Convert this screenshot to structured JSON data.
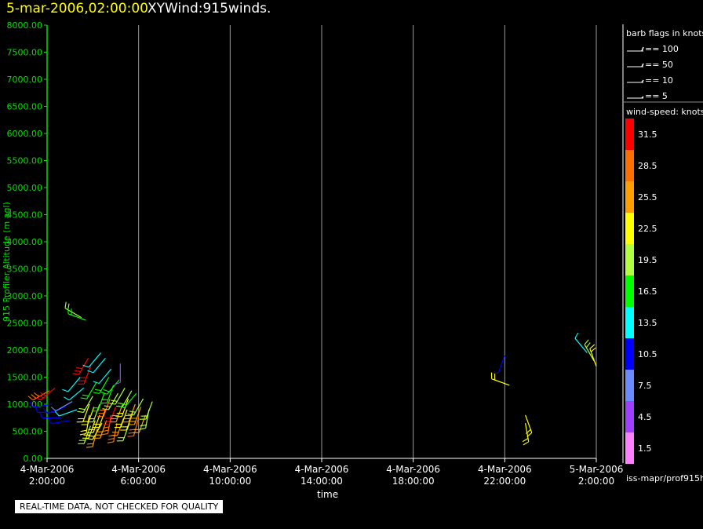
{
  "header": {
    "date_time": "5-mar-2006,02:00:00",
    "plot_name": "XYWind:915winds."
  },
  "quality_note": "REAL-TIME DATA, NOT CHECKED FOR QUALITY",
  "legend": {
    "barb_title": "barb flags in knots",
    "barbs": [
      {
        "label": "== 100"
      },
      {
        "label": "== 50"
      },
      {
        "label": "== 10"
      },
      {
        "label": "== 5"
      }
    ],
    "speed_title": "wind-speed: knots",
    "source_label": "iss-mapr/prof915h",
    "colorbar": [
      {
        "label": "31.5",
        "color": "#ff0000"
      },
      {
        "label": "28.5",
        "color": "#ff7000"
      },
      {
        "label": "25.5",
        "color": "#ffa000"
      },
      {
        "label": "22.5",
        "color": "#ffff00"
      },
      {
        "label": "19.5",
        "color": "#b0ff40"
      },
      {
        "label": "16.5",
        "color": "#00ff00"
      },
      {
        "label": "13.5",
        "color": "#00ffff"
      },
      {
        "label": "10.5",
        "color": "#0000ff"
      },
      {
        "label": "7.5",
        "color": "#6a8cff"
      },
      {
        "label": "4.5",
        "color": "#a040ff"
      },
      {
        "label": "1.5",
        "color": "#ff80ff"
      }
    ]
  },
  "chart_data": {
    "type": "scatter",
    "title": "5-mar-2006,02:00:00  XYWind:915winds.",
    "xlabel": "time",
    "ylabel": "915 Profiler Altitude (m agl)",
    "xlim": [
      "4-Mar-2006 02:00:00",
      "5-Mar-2006 02:00:00"
    ],
    "ylim": [
      0,
      8000
    ],
    "yticks": [
      "0.00",
      "500.00",
      "1000.00",
      "1500.00",
      "2000.00",
      "2500.00",
      "3000.00",
      "3500.00",
      "4000.00",
      "4500.00",
      "5000.00",
      "5500.00",
      "6000.00",
      "6500.00",
      "7000.00",
      "7500.00",
      "8000.00"
    ],
    "xticks": [
      {
        "date": "4-Mar-2006",
        "time": "2:00:00",
        "hour": 0
      },
      {
        "date": "4-Mar-2006",
        "time": "6:00:00",
        "hour": 4
      },
      {
        "date": "4-Mar-2006",
        "time": "10:00:00",
        "hour": 8
      },
      {
        "date": "4-Mar-2006",
        "time": "14:00:00",
        "hour": 12
      },
      {
        "date": "4-Mar-2006",
        "time": "18:00:00",
        "hour": 16
      },
      {
        "date": "4-Mar-2006",
        "time": "22:00:00",
        "hour": 20
      },
      {
        "date": "5-Mar-2006",
        "time": "2:00:00",
        "hour": 24
      }
    ],
    "grid": true,
    "series": [
      {
        "values": [
          {
            "hour": 0.1,
            "alt": 1250,
            "speed": 28,
            "dir": 240
          },
          {
            "hour": 0.35,
            "alt": 1300,
            "speed": 30,
            "dir": 230
          },
          {
            "hour": 0.2,
            "alt": 1000,
            "speed": 9,
            "dir": 260
          },
          {
            "hour": 0.4,
            "alt": 850,
            "speed": 10,
            "dir": 270
          },
          {
            "hour": 0.6,
            "alt": 750,
            "speed": 10,
            "dir": 270
          },
          {
            "hour": 0.8,
            "alt": 950,
            "speed": 9,
            "dir": 250
          },
          {
            "hour": 1.0,
            "alt": 700,
            "speed": 11,
            "dir": 260
          },
          {
            "hour": 1.1,
            "alt": 1050,
            "speed": 8,
            "dir": 240
          },
          {
            "hour": 1.3,
            "alt": 900,
            "speed": 13,
            "dir": 250
          },
          {
            "hour": 1.45,
            "alt": 1500,
            "speed": 12,
            "dir": 220
          },
          {
            "hour": 1.5,
            "alt": 2600,
            "speed": 20,
            "dir": 300
          },
          {
            "hour": 1.7,
            "alt": 2550,
            "speed": 15,
            "dir": 290
          },
          {
            "hour": 1.6,
            "alt": 1300,
            "speed": 14,
            "dir": 230
          },
          {
            "hour": 1.8,
            "alt": 1850,
            "speed": 30,
            "dir": 210
          },
          {
            "hour": 1.9,
            "alt": 1700,
            "speed": 31,
            "dir": 200
          },
          {
            "hour": 1.85,
            "alt": 1000,
            "speed": 21,
            "dir": 200
          },
          {
            "hour": 1.85,
            "alt": 800,
            "speed": 22,
            "dir": 190
          },
          {
            "hour": 1.9,
            "alt": 600,
            "speed": 20,
            "dir": 200
          },
          {
            "hour": 2.0,
            "alt": 1150,
            "speed": 19,
            "dir": 210
          },
          {
            "hour": 2.05,
            "alt": 950,
            "speed": 23,
            "dir": 200
          },
          {
            "hour": 2.1,
            "alt": 700,
            "speed": 22,
            "dir": 200
          },
          {
            "hour": 2.15,
            "alt": 1400,
            "speed": 15,
            "dir": 210
          },
          {
            "hour": 2.2,
            "alt": 550,
            "speed": 24,
            "dir": 195
          },
          {
            "hour": 2.3,
            "alt": 1000,
            "speed": 19,
            "dir": 200
          },
          {
            "hour": 2.3,
            "alt": 800,
            "speed": 23,
            "dir": 200
          },
          {
            "hour": 2.35,
            "alt": 1950,
            "speed": 14,
            "dir": 220
          },
          {
            "hour": 2.4,
            "alt": 650,
            "speed": 21,
            "dir": 210
          },
          {
            "hour": 2.5,
            "alt": 1200,
            "speed": 17,
            "dir": 200
          },
          {
            "hour": 2.55,
            "alt": 1850,
            "speed": 13,
            "dir": 220
          },
          {
            "hour": 2.55,
            "alt": 900,
            "speed": 22,
            "dir": 200
          },
          {
            "hour": 2.6,
            "alt": 700,
            "speed": 25,
            "dir": 200
          },
          {
            "hour": 2.7,
            "alt": 1500,
            "speed": 16,
            "dir": 210
          },
          {
            "hour": 2.75,
            "alt": 1100,
            "speed": 27,
            "dir": 200
          },
          {
            "hour": 2.8,
            "alt": 800,
            "speed": 29,
            "dir": 190
          },
          {
            "hour": 2.8,
            "alt": 1650,
            "speed": 12,
            "dir": 220
          },
          {
            "hour": 2.9,
            "alt": 1350,
            "speed": 17,
            "dir": 200
          },
          {
            "hour": 3.0,
            "alt": 950,
            "speed": 30,
            "dir": 200
          },
          {
            "hour": 3.05,
            "alt": 650,
            "speed": 28,
            "dir": 190
          },
          {
            "hour": 3.1,
            "alt": 1200,
            "speed": 18,
            "dir": 210
          },
          {
            "hour": 3.15,
            "alt": 1450,
            "speed": 15,
            "dir": 220
          },
          {
            "hour": 3.2,
            "alt": 1750,
            "speed": 5,
            "dir": 180
          },
          {
            "hour": 3.3,
            "alt": 1000,
            "speed": 26,
            "dir": 200
          },
          {
            "hour": 3.35,
            "alt": 750,
            "speed": 24,
            "dir": 200
          },
          {
            "hour": 3.4,
            "alt": 1300,
            "speed": 20,
            "dir": 210
          },
          {
            "hour": 3.5,
            "alt": 900,
            "speed": 22,
            "dir": 200
          },
          {
            "hour": 3.55,
            "alt": 1100,
            "speed": 21,
            "dir": 200
          },
          {
            "hour": 3.6,
            "alt": 650,
            "speed": 20,
            "dir": 200
          },
          {
            "hour": 3.7,
            "alt": 1250,
            "speed": 19,
            "dir": 210
          },
          {
            "hour": 3.75,
            "alt": 850,
            "speed": 23,
            "dir": 200
          },
          {
            "hour": 3.85,
            "alt": 1000,
            "speed": 25,
            "dir": 200
          },
          {
            "hour": 3.9,
            "alt": 1200,
            "speed": 16,
            "dir": 220
          },
          {
            "hour": 4.0,
            "alt": 750,
            "speed": 28,
            "dir": 195
          },
          {
            "hour": 4.1,
            "alt": 950,
            "speed": 26,
            "dir": 200
          },
          {
            "hour": 4.2,
            "alt": 1100,
            "speed": 19,
            "dir": 210
          },
          {
            "hour": 4.3,
            "alt": 800,
            "speed": 24,
            "dir": 200
          },
          {
            "hour": 4.45,
            "alt": 900,
            "speed": 20,
            "dir": 190
          },
          {
            "hour": 4.6,
            "alt": 1050,
            "speed": 18,
            "dir": 200
          },
          {
            "hour": 20.0,
            "alt": 1900,
            "speed": 10,
            "dir": 200
          },
          {
            "hour": 20.2,
            "alt": 1350,
            "speed": 22,
            "dir": 290
          },
          {
            "hour": 20.9,
            "alt": 800,
            "speed": 21,
            "dir": 160
          },
          {
            "hour": 20.9,
            "alt": 650,
            "speed": 22,
            "dir": 170
          },
          {
            "hour": 23.6,
            "alt": 1950,
            "speed": 14,
            "dir": 320
          },
          {
            "hour": 23.9,
            "alt": 1800,
            "speed": 18,
            "dir": 330
          },
          {
            "hour": 24.0,
            "alt": 1700,
            "speed": 22,
            "dir": 340
          }
        ]
      }
    ]
  }
}
